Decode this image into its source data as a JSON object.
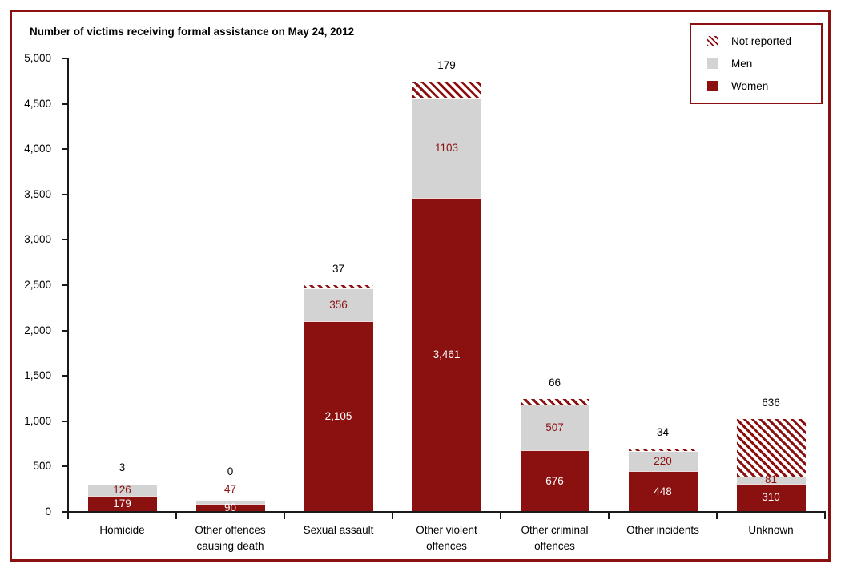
{
  "title": "Number of victims receiving formal assistance on May 24, 2012",
  "colors": {
    "maroon": "#8B1010",
    "gray": "#D3D3D3",
    "text": "#000000",
    "background": "#FFFFFF",
    "border": "#8B1010"
  },
  "legend": {
    "items": [
      {
        "label": "Not reported",
        "swatch": "striped"
      },
      {
        "label": "Men",
        "swatch": "gray"
      },
      {
        "label": "Women",
        "swatch": "maroon"
      }
    ]
  },
  "chart_data": {
    "type": "bar",
    "stacked": true,
    "title": "Number of victims receiving formal assistance on May 24, 2012",
    "categories": [
      "Homicide",
      "Other offences\ncausing death",
      "Sexual assault",
      "Other violent\noffences",
      "Other criminal\noffences",
      "Other incidents",
      "Unknown"
    ],
    "series": [
      {
        "name": "Women",
        "style": "maroon",
        "values": [
          179,
          90,
          2105,
          3461,
          676,
          448,
          310
        ],
        "display_labels": [
          "179",
          "90",
          "2,105",
          "3,461",
          "676",
          "448",
          "310"
        ]
      },
      {
        "name": "Men",
        "style": "gray",
        "values": [
          126,
          47,
          356,
          1103,
          507,
          220,
          81
        ],
        "display_labels": [
          "126",
          "47",
          "356",
          "1103",
          "507",
          "220",
          "81"
        ]
      },
      {
        "name": "Not reported",
        "style": "striped",
        "values": [
          3,
          0,
          37,
          179,
          66,
          34,
          636
        ],
        "display_labels": [
          "3",
          "0",
          "37",
          "179",
          "66",
          "34",
          "636"
        ]
      }
    ],
    "xlabel": "",
    "ylabel": "",
    "ylim": [
      0,
      5000
    ],
    "ytick_interval": 500,
    "ytick_labels": [
      "0",
      "500",
      "1,000",
      "1,500",
      "2,000",
      "2,500",
      "3,000",
      "3,500",
      "4,000",
      "4,500",
      "5,000"
    ],
    "grid": false,
    "legend_position": "top-right",
    "legend_order": [
      "Not reported",
      "Men",
      "Women"
    ]
  }
}
